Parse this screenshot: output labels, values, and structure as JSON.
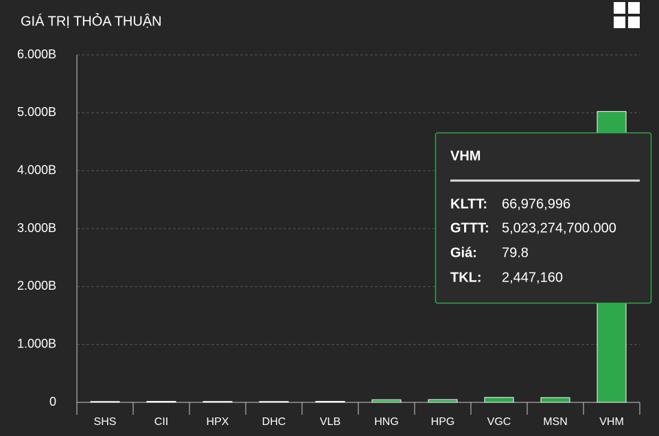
{
  "chart_data": {
    "type": "bar",
    "title": "GIÁ TRỊ THỎA THUẬN",
    "categories": [
      "SHS",
      "CII",
      "HPX",
      "DHC",
      "VLB",
      "HNG",
      "HPG",
      "VGC",
      "MSN",
      "VHM"
    ],
    "values": [
      15000000,
      18000000,
      16000000,
      15000000,
      18000000,
      45000000,
      48000000,
      85000000,
      82000000,
      5023274700
    ],
    "colors": [
      "#f2f2f2",
      "#f2f2f2",
      "#f2f2f2",
      "#f2f2f2",
      "#f2f2f2",
      "#2ea84a",
      "#2ea84a",
      "#2ea84a",
      "#2ea84a",
      "#2ea84a"
    ],
    "ylim": [
      0,
      6000000000
    ],
    "yticks": [
      0,
      {
        "value": 1000000000,
        "label": "1.000B"
      },
      {
        "value": 2000000000,
        "label": "2.000B"
      },
      {
        "value": 3000000000,
        "label": "3.000B"
      },
      {
        "value": 4000000000,
        "label": "4.000B"
      },
      {
        "value": 5000000000,
        "label": "5.000B"
      },
      {
        "value": 6000000000,
        "label": "6.000B"
      }
    ],
    "grid": true,
    "tooltip": {
      "title": "VHM",
      "rows": [
        {
          "label": "KLTT:",
          "value": "66,976,996"
        },
        {
          "label": "GTTT:",
          "value": "5,023,274,700.000"
        },
        {
          "label": "Giá:",
          "value": "79.8"
        },
        {
          "label": "TKL:",
          "value": "2,447,160"
        }
      ]
    }
  }
}
